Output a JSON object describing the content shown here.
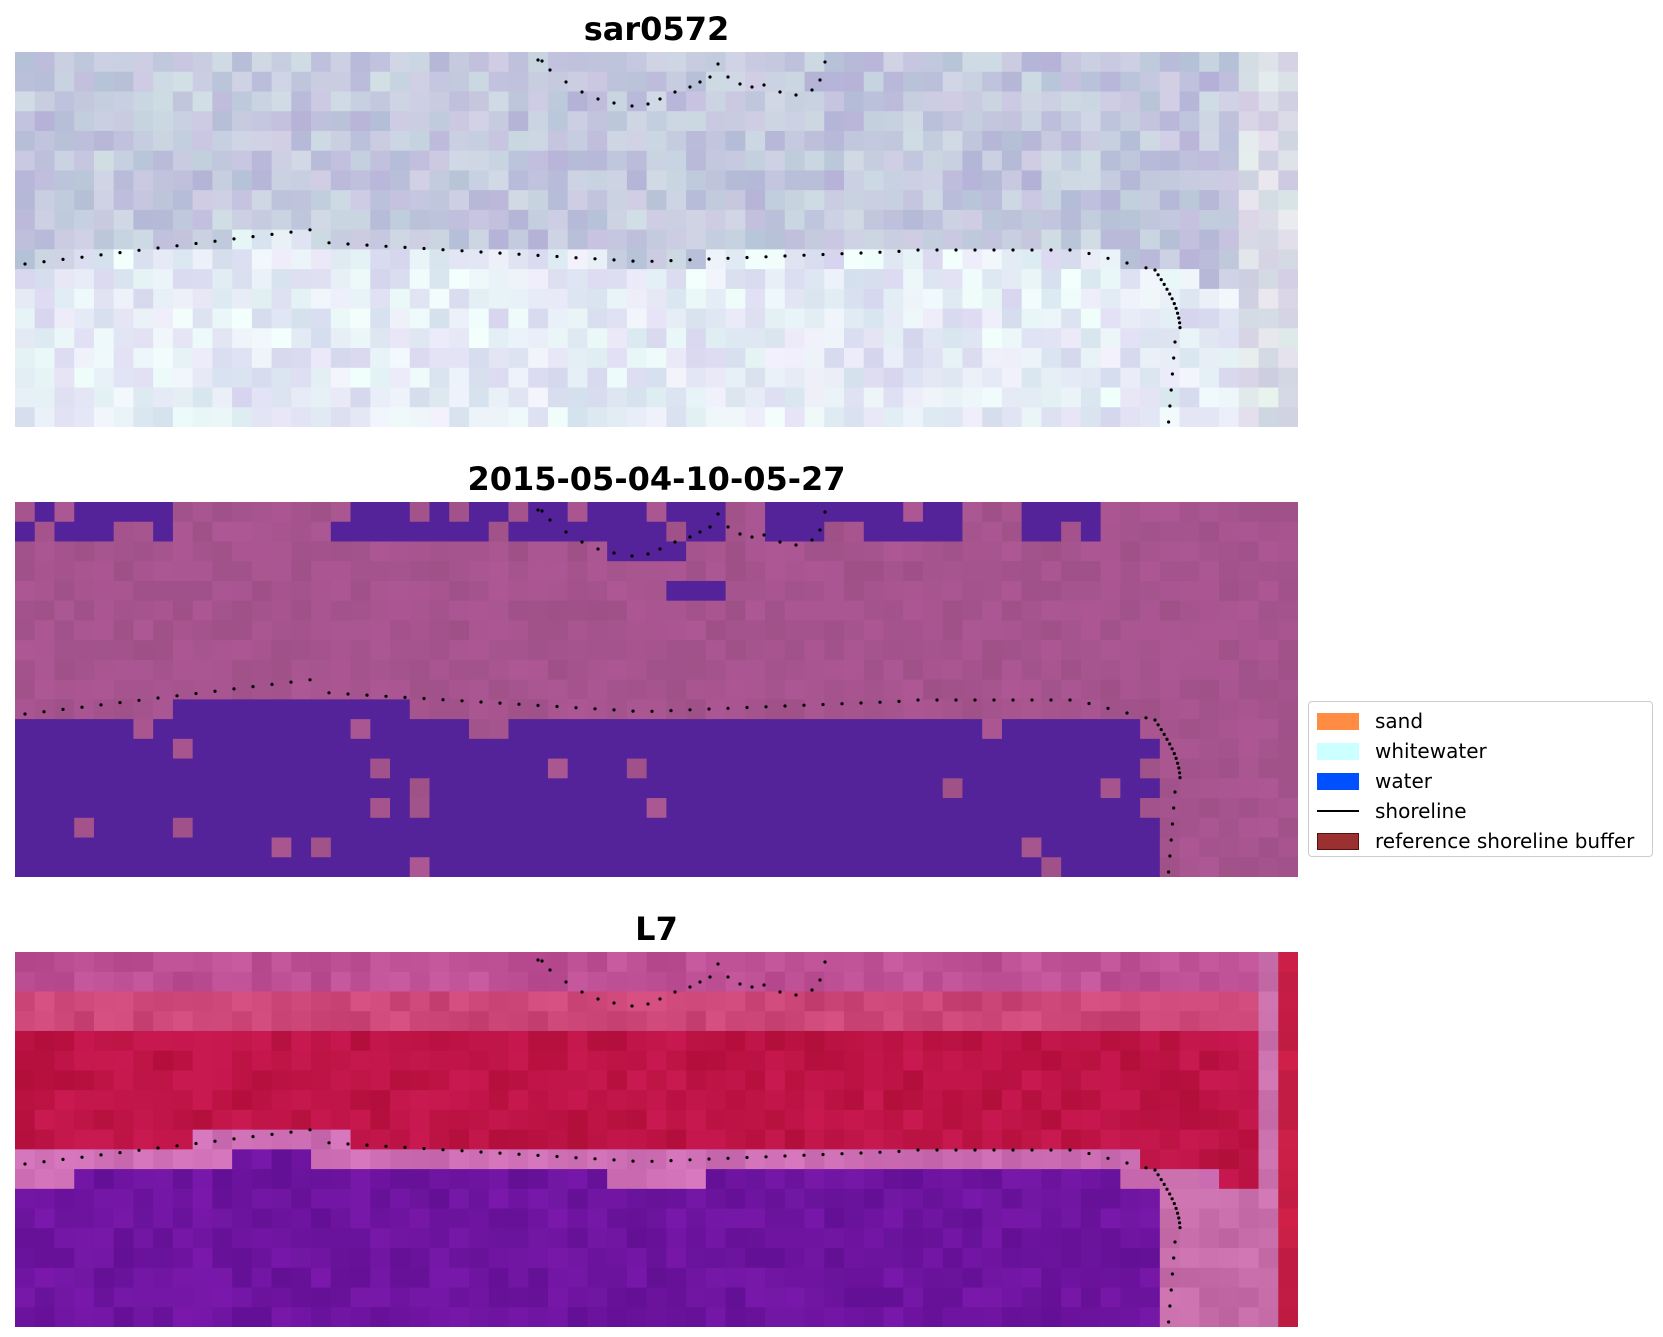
{
  "panels": [
    {
      "title": "sar0572",
      "kind": "sar"
    },
    {
      "title": "2015-05-04-10-05-27",
      "kind": "classified"
    },
    {
      "title": "L7",
      "kind": "falsecolor"
    }
  ],
  "legend": {
    "items": [
      {
        "label": "sand",
        "type": "patch",
        "color": "#ff8c42",
        "edge": "#ff8c42"
      },
      {
        "label": "whitewater",
        "type": "patch",
        "color": "#ccffff",
        "edge": "#ccffff"
      },
      {
        "label": "water",
        "type": "patch",
        "color": "#0050ff",
        "edge": "#0050ff"
      },
      {
        "label": "shoreline",
        "type": "line",
        "color": "#000000"
      },
      {
        "label": "reference shoreline buffer",
        "type": "patch",
        "color": "#9b3030",
        "edge": "#5a1010"
      }
    ]
  },
  "colors": {
    "classified_water": "#54239a",
    "classified_land": "#a6548e",
    "shoreline_dots": "#000000"
  }
}
